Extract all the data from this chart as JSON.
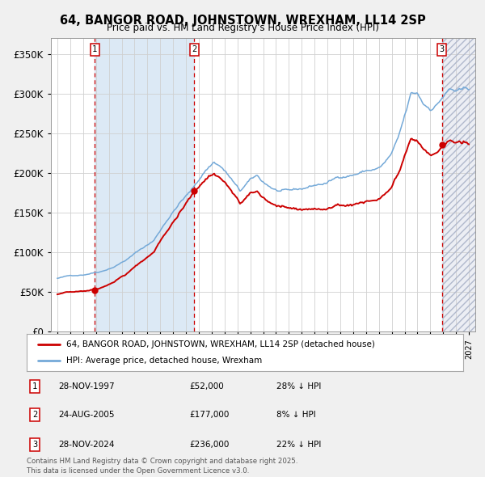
{
  "title": "64, BANGOR ROAD, JOHNSTOWN, WREXHAM, LL14 2SP",
  "subtitle": "Price paid vs. HM Land Registry's House Price Index (HPI)",
  "ylabel_ticks": [
    "£0",
    "£50K",
    "£100K",
    "£150K",
    "£200K",
    "£250K",
    "£300K",
    "£350K"
  ],
  "ytick_vals": [
    0,
    50000,
    100000,
    150000,
    200000,
    250000,
    300000,
    350000
  ],
  "ylim": [
    0,
    370000
  ],
  "xlim_start": 1994.5,
  "xlim_end": 2027.5,
  "sale1_date": 1997.91,
  "sale1_price": 52000,
  "sale2_date": 2005.65,
  "sale2_price": 177000,
  "sale3_date": 2024.91,
  "sale3_price": 236000,
  "hpi_color": "#74a9d8",
  "price_color": "#cc0000",
  "shading_color": "#dce9f5",
  "legend_label_price": "64, BANGOR ROAD, JOHNSTOWN, WREXHAM, LL14 2SP (detached house)",
  "legend_label_hpi": "HPI: Average price, detached house, Wrexham",
  "table_entries": [
    {
      "num": "1",
      "date": "28-NOV-1997",
      "price": "£52,000",
      "note": "28% ↓ HPI"
    },
    {
      "num": "2",
      "date": "24-AUG-2005",
      "price": "£177,000",
      "note": "8% ↓ HPI"
    },
    {
      "num": "3",
      "date": "28-NOV-2024",
      "price": "£236,000",
      "note": "22% ↓ HPI"
    }
  ],
  "footnote": "Contains HM Land Registry data © Crown copyright and database right 2025.\nThis data is licensed under the Open Government Licence v3.0.",
  "fig_bg_color": "#f0f0f0",
  "plot_bg_color": "#ffffff"
}
